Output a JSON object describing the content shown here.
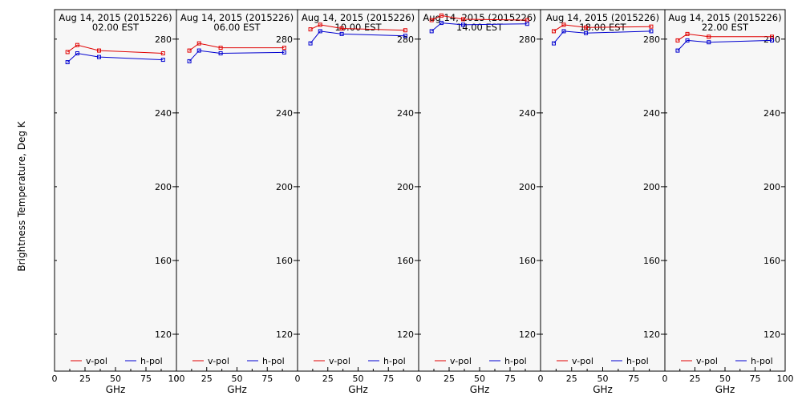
{
  "figure": {
    "ylabel": "Brightness Temperature, Deg K",
    "xlabel": "GHz"
  },
  "chart_data": [
    {
      "type": "line",
      "title": "Aug 14, 2015 (2015226)",
      "subtitle": "02.00 EST",
      "xlabel": "GHz",
      "ylabel": "Brightness Temperature, Deg K",
      "xlim": [
        0,
        100
      ],
      "ylim": [
        100,
        296
      ],
      "xticks": [
        "0",
        "25",
        "50",
        "75",
        "100"
      ],
      "yticks": [
        "120",
        "160",
        "200",
        "240",
        "280"
      ],
      "x": [
        10.65,
        18.7,
        36.5,
        89
      ],
      "series": [
        {
          "name": "v-pol",
          "color": "#e00000",
          "values": [
            273.0,
            276.8,
            273.8,
            272.3
          ]
        },
        {
          "name": "h-pol",
          "color": "#0000d0",
          "values": [
            267.5,
            272.3,
            270.3,
            268.8
          ]
        }
      ],
      "legend": "bottom"
    },
    {
      "type": "line",
      "title": "Aug 14, 2015 (2015226)",
      "subtitle": "06.00 EST",
      "xlabel": "GHz",
      "ylabel": "Brightness Temperature, Deg K",
      "xlim": [
        0,
        100
      ],
      "ylim": [
        100,
        296
      ],
      "xticks": [
        "0",
        "25",
        "50",
        "75"
      ],
      "yticks": [
        "120",
        "160",
        "200",
        "240",
        "280"
      ],
      "x": [
        10.65,
        18.7,
        36.5,
        89
      ],
      "series": [
        {
          "name": "v-pol",
          "color": "#e00000",
          "values": [
            273.8,
            277.7,
            275.3,
            275.3
          ]
        },
        {
          "name": "h-pol",
          "color": "#0000d0",
          "values": [
            268.0,
            273.8,
            272.3,
            272.8
          ]
        }
      ],
      "legend": "bottom"
    },
    {
      "type": "line",
      "title": "Aug 14, 2015 (2015226)",
      "subtitle": "10.00 EST",
      "xlabel": "GHz",
      "ylabel": "Brightness Temperature, Deg K",
      "xlim": [
        0,
        100
      ],
      "ylim": [
        100,
        296
      ],
      "xticks": [
        "0",
        "25",
        "50",
        "75"
      ],
      "yticks": [
        "120",
        "160",
        "200",
        "240",
        "280"
      ],
      "x": [
        10.65,
        18.7,
        36.5,
        89
      ],
      "series": [
        {
          "name": "v-pol",
          "color": "#e00000",
          "values": [
            285.3,
            287.8,
            285.8,
            284.8
          ]
        },
        {
          "name": "h-pol",
          "color": "#0000d0",
          "values": [
            277.7,
            284.3,
            282.8,
            281.8
          ]
        }
      ],
      "legend": "bottom"
    },
    {
      "type": "line",
      "title": "Aug 14, 2015 (2015226)",
      "subtitle": "14.00 EST",
      "xlabel": "GHz",
      "ylabel": "Brightness Temperature, Deg K",
      "xlim": [
        0,
        100
      ],
      "ylim": [
        100,
        296
      ],
      "xticks": [
        "0",
        "25",
        "50",
        "75"
      ],
      "yticks": [
        "120",
        "160",
        "200",
        "240",
        "280"
      ],
      "x": [
        10.65,
        18.7,
        36.5,
        89
      ],
      "series": [
        {
          "name": "v-pol",
          "color": "#e00000",
          "values": [
            290.3,
            292.8,
            290.8,
            290.3
          ]
        },
        {
          "name": "h-pol",
          "color": "#0000d0",
          "values": [
            284.3,
            288.8,
            287.8,
            288.3
          ]
        }
      ],
      "legend": "bottom"
    },
    {
      "type": "line",
      "title": "Aug 14, 2015 (2015226)",
      "subtitle": "18.00 EST",
      "xlabel": "GHz",
      "ylabel": "Brightness Temperature, Deg K",
      "xlim": [
        0,
        100
      ],
      "ylim": [
        100,
        296
      ],
      "xticks": [
        "0",
        "25",
        "50",
        "75"
      ],
      "yticks": [
        "120",
        "160",
        "200",
        "240",
        "280"
      ],
      "x": [
        10.65,
        18.7,
        36.5,
        89
      ],
      "series": [
        {
          "name": "v-pol",
          "color": "#e00000",
          "values": [
            284.3,
            287.8,
            286.3,
            286.8
          ]
        },
        {
          "name": "h-pol",
          "color": "#0000d0",
          "values": [
            277.7,
            284.3,
            283.3,
            284.3
          ]
        }
      ],
      "legend": "bottom"
    },
    {
      "type": "line",
      "title": "Aug 14, 2015 (2015226)",
      "subtitle": "22.00 EST",
      "xlabel": "GHz",
      "ylabel": "Brightness Temperature, Deg K",
      "xlim": [
        0,
        100
      ],
      "ylim": [
        100,
        296
      ],
      "xticks": [
        "0",
        "25",
        "50",
        "75",
        "100"
      ],
      "yticks": [
        "120",
        "160",
        "200",
        "240",
        "280"
      ],
      "x": [
        10.65,
        18.7,
        36.5,
        89
      ],
      "series": [
        {
          "name": "v-pol",
          "color": "#e00000",
          "values": [
            279.3,
            282.8,
            281.3,
            281.3
          ]
        },
        {
          "name": "h-pol",
          "color": "#0000d0",
          "values": [
            273.8,
            279.3,
            278.3,
            279.3
          ]
        }
      ],
      "legend": "bottom"
    }
  ]
}
